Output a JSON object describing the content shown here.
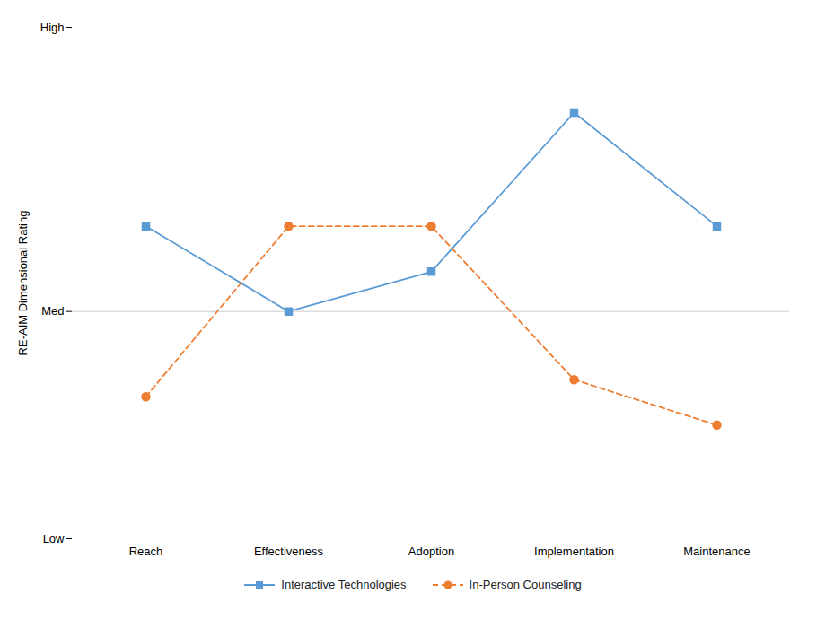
{
  "chart_data": {
    "type": "line",
    "categories": [
      "Reach",
      "Effectiveness",
      "Adoption",
      "Implementation",
      "Maintenance"
    ],
    "series": [
      {
        "name": "Interactive Technologies",
        "color": "#5B9BD5",
        "values": [
          6.5,
          5.0,
          5.7,
          8.5,
          6.5
        ],
        "marker": "square",
        "line_style": "solid"
      },
      {
        "name": "In-Person Counseling",
        "color": "#ED7D31",
        "values": [
          3.5,
          6.5,
          6.5,
          3.8,
          3.0
        ],
        "marker": "circle",
        "line_style": "dashed"
      }
    ],
    "ylabel": "RE-AIM Dimensional Rating",
    "ylim": [
      1,
      10
    ],
    "yticks": [
      {
        "value": 1,
        "label": "Low"
      },
      {
        "value": 5,
        "label": "Med"
      },
      {
        "value": 10,
        "label": "High"
      }
    ],
    "hline": {
      "value": 5,
      "color": "#cccccc"
    },
    "grid": false,
    "legend": "bottom"
  }
}
